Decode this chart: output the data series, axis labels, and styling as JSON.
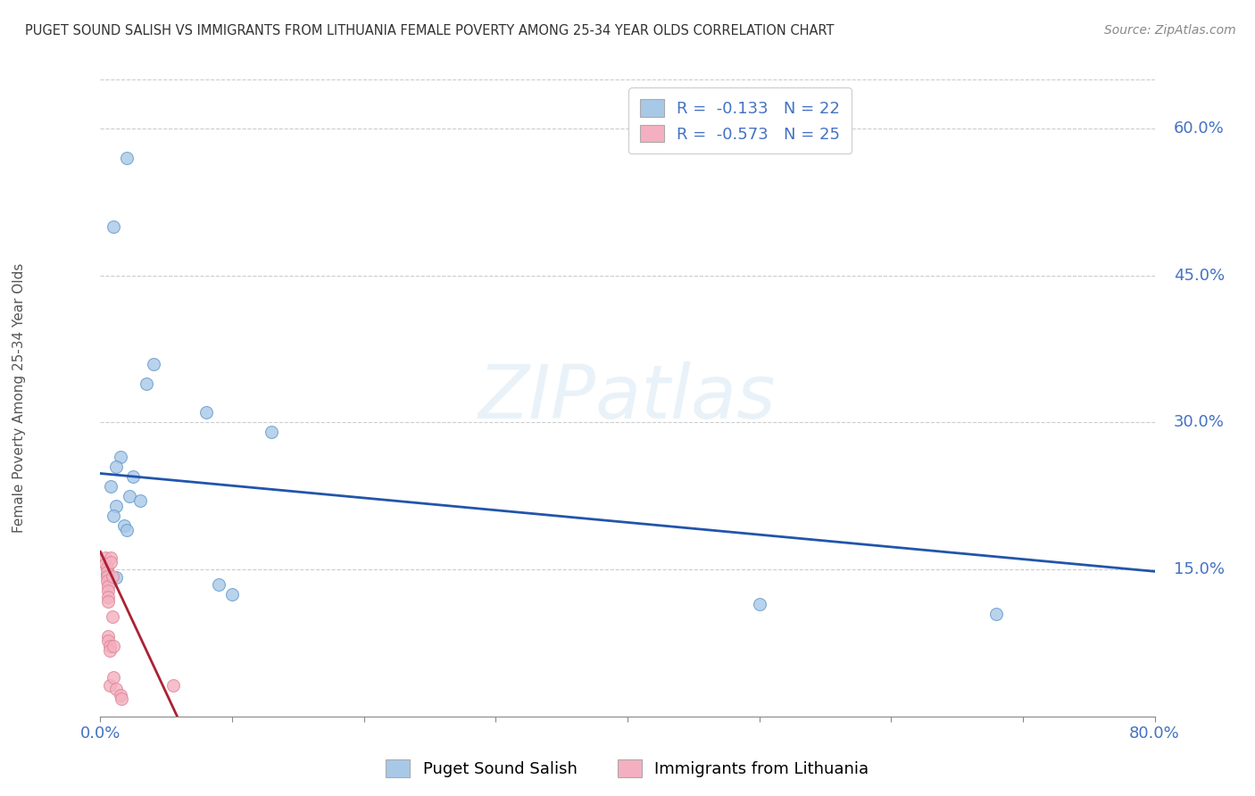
{
  "title": "PUGET SOUND SALISH VS IMMIGRANTS FROM LITHUANIA FEMALE POVERTY AMONG 25-34 YEAR OLDS CORRELATION CHART",
  "source": "Source: ZipAtlas.com",
  "ylabel": "Female Poverty Among 25-34 Year Olds",
  "xlim": [
    0,
    0.8
  ],
  "ylim": [
    0,
    0.65
  ],
  "xticks": [
    0.0,
    0.1,
    0.2,
    0.3,
    0.4,
    0.5,
    0.6,
    0.7,
    0.8
  ],
  "xticklabels": [
    "0.0%",
    "",
    "",
    "",
    "",
    "",
    "",
    "",
    "80.0%"
  ],
  "ytick_positions": [
    0.15,
    0.3,
    0.45,
    0.6
  ],
  "ytick_labels": [
    "15.0%",
    "30.0%",
    "45.0%",
    "60.0%"
  ],
  "blue_color": "#a8c8e8",
  "blue_edge_color": "#6699cc",
  "pink_color": "#f4b0c0",
  "pink_edge_color": "#dd8899",
  "blue_line_color": "#2255aa",
  "pink_line_color": "#aa2233",
  "label1": "Puget Sound Salish",
  "label2": "Immigrants from Lithuania",
  "watermark": "ZIPatlas",
  "blue_scatter_x": [
    0.02,
    0.01,
    0.04,
    0.035,
    0.08,
    0.13,
    0.015,
    0.012,
    0.022,
    0.012,
    0.01,
    0.018,
    0.02,
    0.012,
    0.68,
    0.5,
    0.09,
    0.1,
    0.005,
    0.008,
    0.025,
    0.03
  ],
  "blue_scatter_y": [
    0.57,
    0.5,
    0.36,
    0.34,
    0.31,
    0.29,
    0.265,
    0.255,
    0.225,
    0.215,
    0.205,
    0.195,
    0.19,
    0.142,
    0.105,
    0.115,
    0.135,
    0.125,
    0.145,
    0.235,
    0.245,
    0.22
  ],
  "pink_scatter_x": [
    0.004,
    0.004,
    0.005,
    0.005,
    0.005,
    0.005,
    0.006,
    0.006,
    0.006,
    0.006,
    0.006,
    0.006,
    0.007,
    0.007,
    0.007,
    0.008,
    0.008,
    0.009,
    0.009,
    0.01,
    0.01,
    0.012,
    0.015,
    0.016,
    0.055
  ],
  "pink_scatter_y": [
    0.162,
    0.156,
    0.152,
    0.147,
    0.143,
    0.138,
    0.133,
    0.128,
    0.122,
    0.117,
    0.082,
    0.077,
    0.072,
    0.067,
    0.032,
    0.162,
    0.157,
    0.143,
    0.102,
    0.072,
    0.04,
    0.028,
    0.022,
    0.018,
    0.032
  ],
  "blue_trendline_x": [
    0.0,
    0.8
  ],
  "blue_trendline_y": [
    0.248,
    0.148
  ],
  "pink_trendline_x": [
    0.0,
    0.06
  ],
  "pink_trendline_y": [
    0.168,
    -0.005
  ],
  "background_color": "#ffffff",
  "grid_color": "#cccccc",
  "title_color": "#333333",
  "axis_label_color": "#4472c4",
  "marker_size": 100
}
